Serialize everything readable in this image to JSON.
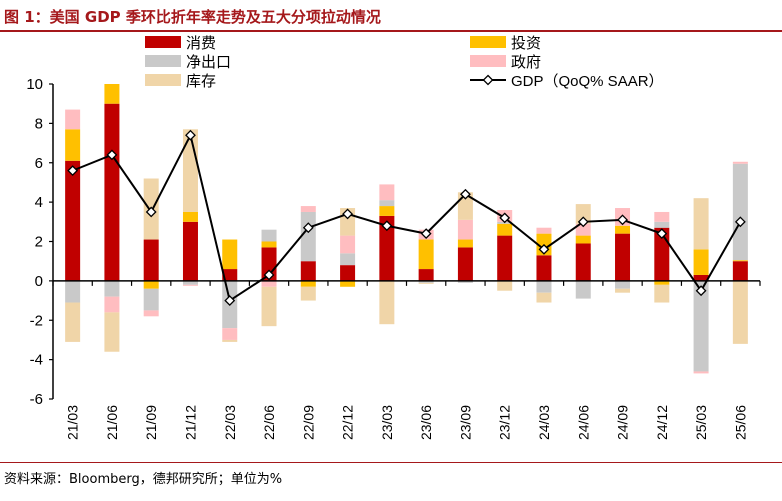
{
  "title": "图 1：美国 GDP 季环比折年率走势及五大分项拉动情况",
  "source": "资料来源：Bloomberg，德邦研究所；单位为%",
  "chart_data": {
    "type": "bar",
    "stacked": true,
    "categories": [
      "21/03",
      "21/06",
      "21/09",
      "21/12",
      "22/03",
      "22/06",
      "22/09",
      "22/12",
      "23/03",
      "23/06",
      "23/09",
      "23/12",
      "24/03",
      "24/06",
      "24/09",
      "24/12",
      "25/03",
      "25/06"
    ],
    "ylim": [
      -6,
      10
    ],
    "yticks": [
      -6,
      -4,
      -2,
      0,
      2,
      4,
      6,
      8,
      10
    ],
    "legend_position": "top",
    "series": [
      {
        "name": "消费",
        "color": "#c00000",
        "values": [
          6.1,
          9.0,
          2.1,
          3.0,
          0.6,
          1.7,
          1.0,
          0.8,
          3.3,
          0.6,
          1.7,
          2.3,
          1.3,
          1.9,
          2.4,
          2.7,
          0.3,
          1.0
        ]
      },
      {
        "name": "投资",
        "color": "#ffc000",
        "values": [
          1.6,
          1.0,
          -0.4,
          0.5,
          1.5,
          0.3,
          -0.3,
          -0.3,
          0.5,
          1.5,
          0.4,
          0.6,
          1.1,
          0.4,
          0.4,
          -0.2,
          1.3,
          0.05
        ]
      },
      {
        "name": "净出口",
        "color": "#c9c9c9",
        "values": [
          -1.1,
          -0.8,
          -1.1,
          -0.2,
          -2.4,
          0.6,
          2.5,
          0.6,
          0.3,
          -0.1,
          -0.1,
          0.1,
          -0.6,
          -0.9,
          -0.4,
          0.3,
          -4.6,
          4.9
        ]
      },
      {
        "name": "政府",
        "color": "#ffbdc0",
        "values": [
          1.0,
          -0.8,
          -0.3,
          -0.05,
          -0.6,
          -0.3,
          0.3,
          0.9,
          0.8,
          0.5,
          1.0,
          0.6,
          0.3,
          0.6,
          0.9,
          0.5,
          -0.1,
          0.1
        ]
      },
      {
        "name": "库存",
        "color": "#f0d5a8",
        "values": [
          -2.0,
          -2.0,
          3.1,
          4.2,
          -0.1,
          -2.0,
          -0.7,
          1.4,
          -2.2,
          -0.05,
          1.4,
          -0.5,
          -0.5,
          1.0,
          -0.2,
          -0.9,
          2.6,
          -3.2
        ]
      }
    ],
    "line": {
      "name": "GDP（QoQ% SAAR）",
      "color": "#000000",
      "values": [
        5.6,
        6.4,
        3.5,
        7.4,
        -1.0,
        0.3,
        2.7,
        3.4,
        2.8,
        2.4,
        4.4,
        3.2,
        1.6,
        3.0,
        3.1,
        2.4,
        -0.5,
        3.0
      ]
    }
  }
}
